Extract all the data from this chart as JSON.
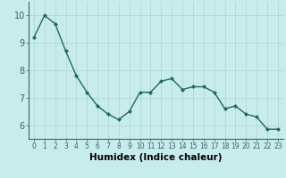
{
  "x": [
    0,
    1,
    2,
    3,
    4,
    5,
    6,
    7,
    8,
    9,
    10,
    11,
    12,
    13,
    14,
    15,
    16,
    17,
    18,
    19,
    20,
    21,
    22,
    23
  ],
  "y": [
    9.2,
    10.0,
    9.7,
    8.7,
    7.8,
    7.2,
    6.7,
    6.4,
    6.2,
    6.5,
    7.2,
    7.2,
    7.6,
    7.7,
    7.3,
    7.4,
    7.4,
    7.2,
    6.6,
    6.7,
    6.4,
    6.3,
    5.85,
    5.85
  ],
  "line_color": "#1a6b5e",
  "marker": "D",
  "marker_size": 2.0,
  "bg_color": "#c8ecec",
  "grid_color": "#b0d8d8",
  "xlabel": "Humidex (Indice chaleur)",
  "xlabel_fontsize": 7.5,
  "xlim": [
    -0.5,
    23.5
  ],
  "ylim": [
    5.5,
    10.5
  ],
  "yticks": [
    6,
    7,
    8,
    9,
    10
  ],
  "xticks": [
    0,
    1,
    2,
    3,
    4,
    5,
    6,
    7,
    8,
    9,
    10,
    11,
    12,
    13,
    14,
    15,
    16,
    17,
    18,
    19,
    20,
    21,
    22,
    23
  ],
  "tick_fontsize": 5.5,
  "ytick_fontsize": 7.0,
  "linewidth": 1.0
}
